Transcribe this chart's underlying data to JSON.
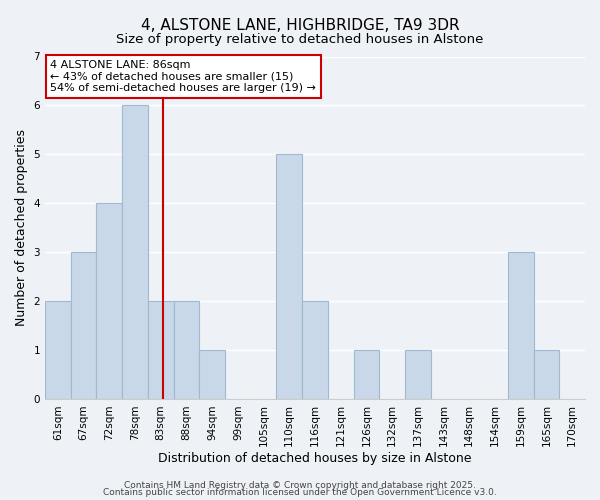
{
  "title": "4, ALSTONE LANE, HIGHBRIDGE, TA9 3DR",
  "subtitle": "Size of property relative to detached houses in Alstone",
  "xlabel": "Distribution of detached houses by size in Alstone",
  "ylabel": "Number of detached properties",
  "bin_labels": [
    "61sqm",
    "67sqm",
    "72sqm",
    "78sqm",
    "83sqm",
    "88sqm",
    "94sqm",
    "99sqm",
    "105sqm",
    "110sqm",
    "116sqm",
    "121sqm",
    "126sqm",
    "132sqm",
    "137sqm",
    "143sqm",
    "148sqm",
    "154sqm",
    "159sqm",
    "165sqm",
    "170sqm"
  ],
  "bar_heights": [
    2,
    3,
    4,
    6,
    2,
    2,
    1,
    0,
    0,
    5,
    2,
    0,
    1,
    0,
    1,
    0,
    0,
    0,
    3,
    1,
    0
  ],
  "bar_color": "#c8d8e8",
  "bar_edge_color": "#a0b8d0",
  "ylim": [
    0,
    7
  ],
  "yticks": [
    0,
    1,
    2,
    3,
    4,
    5,
    6,
    7
  ],
  "red_line_x": 4.6,
  "annotation_text": "4 ALSTONE LANE: 86sqm\n← 43% of detached houses are smaller (15)\n54% of semi-detached houses are larger (19) →",
  "annotation_box_color": "#ffffff",
  "annotation_box_edge": "#cc0000",
  "footer_line1": "Contains HM Land Registry data © Crown copyright and database right 2025.",
  "footer_line2": "Contains public sector information licensed under the Open Government Licence v3.0.",
  "background_color": "#eef2f7",
  "grid_color": "#ffffff",
  "title_fontsize": 11,
  "subtitle_fontsize": 9.5,
  "axis_label_fontsize": 9,
  "tick_fontsize": 7.5,
  "annotation_fontsize": 8,
  "footer_fontsize": 6.5
}
